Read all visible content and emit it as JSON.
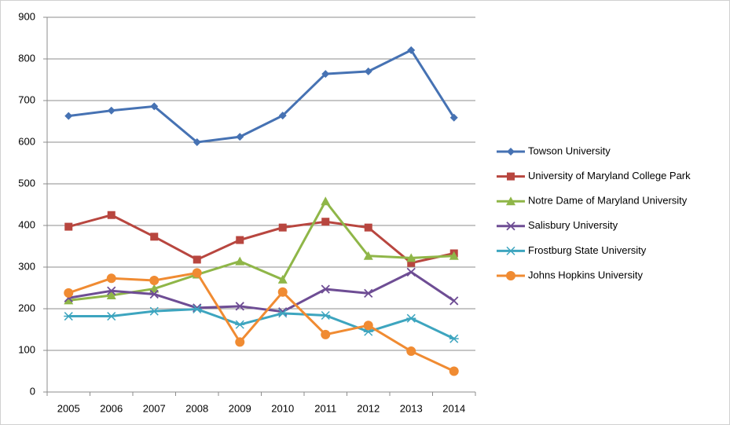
{
  "chart_data": {
    "type": "line",
    "categories": [
      "2005",
      "2006",
      "2007",
      "2008",
      "2009",
      "2010",
      "2011",
      "2012",
      "2013",
      "2014"
    ],
    "series": [
      {
        "name": "Towson University",
        "color": "#4672b3",
        "marker": "diamond",
        "values": [
          663,
          676,
          686,
          600,
          613,
          664,
          764,
          770,
          821,
          659
        ]
      },
      {
        "name": "University of Maryland College Park",
        "color": "#b8463f",
        "marker": "square",
        "values": [
          397,
          425,
          373,
          318,
          365,
          395,
          409,
          395,
          310,
          333
        ]
      },
      {
        "name": "Notre Dame of Maryland University",
        "color": "#8fb648",
        "marker": "triangle",
        "values": [
          220,
          232,
          248,
          282,
          314,
          270,
          458,
          327,
          322,
          327
        ]
      },
      {
        "name": "Salisbury University",
        "color": "#6e4d94",
        "marker": "x",
        "values": [
          226,
          243,
          235,
          202,
          206,
          193,
          247,
          237,
          288,
          219
        ]
      },
      {
        "name": "Frostburg State University",
        "color": "#3da5bf",
        "marker": "star",
        "values": [
          182,
          182,
          194,
          199,
          162,
          189,
          184,
          145,
          177,
          128
        ]
      },
      {
        "name": "Johns Hopkins University",
        "color": "#f08b32",
        "marker": "circle",
        "values": [
          238,
          273,
          268,
          286,
          120,
          240,
          138,
          160,
          98,
          50
        ]
      }
    ],
    "ylim": [
      0,
      900
    ],
    "yticks": [
      0,
      100,
      200,
      300,
      400,
      500,
      600,
      700,
      800,
      900
    ],
    "grid": true,
    "legend": "right"
  }
}
